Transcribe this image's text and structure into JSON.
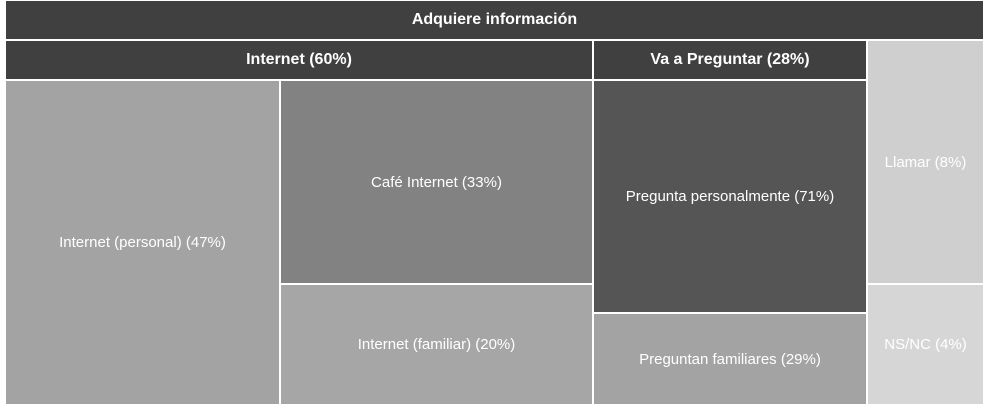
{
  "chart_data": {
    "type": "treemap",
    "title": "Adquiere información",
    "groups": [
      {
        "label": "Internet (60%)",
        "name": "Internet",
        "value": 60,
        "children": [
          {
            "label": "Internet (personal) (47%)",
            "name": "Internet (personal)",
            "value": 47
          },
          {
            "label": "Café Internet (33%)",
            "name": "Café Internet",
            "value": 33
          },
          {
            "label": "Internet (familiar) (20%)",
            "name": "Internet (familiar)",
            "value": 20
          }
        ]
      },
      {
        "label": "Va a Preguntar (28%)",
        "name": "Va a Preguntar",
        "value": 28,
        "children": [
          {
            "label": "Pregunta personalmente (71%)",
            "name": "Pregunta personalmente",
            "value": 71
          },
          {
            "label": "Preguntan familiares (29%)",
            "name": "Preguntan familiares",
            "value": 29
          }
        ]
      },
      {
        "label": "Llamar (8%)",
        "name": "Llamar",
        "value": 8,
        "children": []
      },
      {
        "label": "NS/NC (4%)",
        "name": "NS/NC",
        "value": 4,
        "children": []
      }
    ]
  },
  "colors": {
    "root_header": "#404040",
    "internet_header": "#404040",
    "pregunta_header": "#404040",
    "internet_personal": "#a3a3a3",
    "cafe_internet": "#828282",
    "internet_familiar": "#a6a6a6",
    "pregunta_personal": "#555555",
    "preguntan_familiares": "#a3a3a3",
    "llamar": "#cfcfcf",
    "nsnc": "#d6d6d6"
  }
}
